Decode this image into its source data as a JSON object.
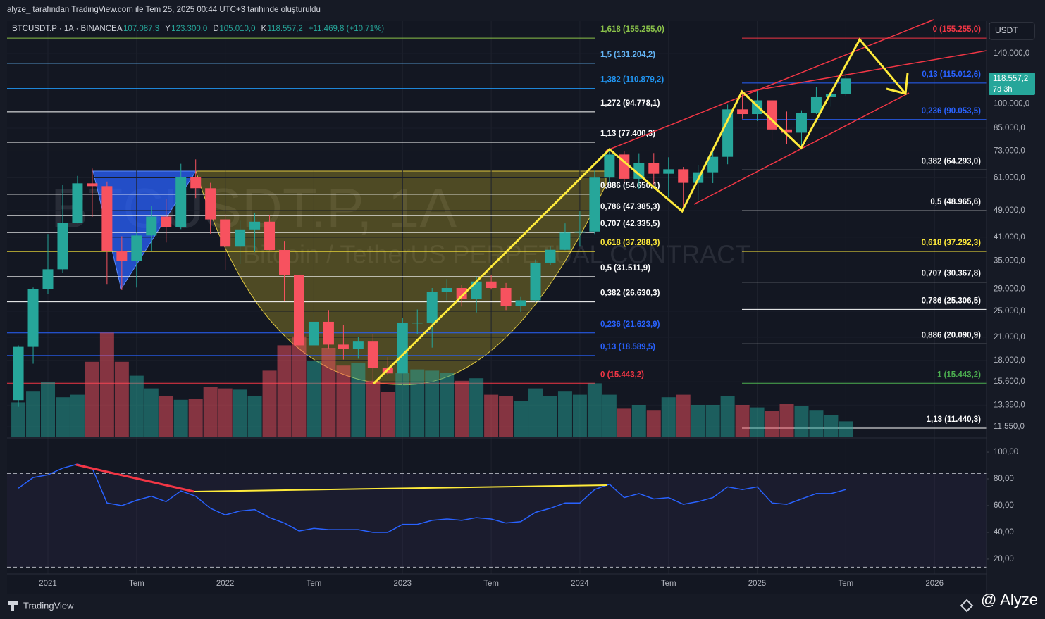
{
  "header": {
    "credit": "alyze_  tarafından TradingView.com ile Tem 25, 2025 00:44 UTC+3 tarihinde oluşturuldu",
    "symbol": "BTCUSDT.P · 1A · BINANCE",
    "ohlc": [
      {
        "key": "A",
        "value": "107.087,3"
      },
      {
        "key": "Y",
        "value": "123.300,0"
      },
      {
        "key": "D",
        "value": "105.010,0"
      },
      {
        "key": "K",
        "value": "118.557,2"
      }
    ],
    "change": "+11.469,8 (+10,71%)",
    "currency": "USDT",
    "price_tag": "118.557,2",
    "countdown": "7d 3h"
  },
  "watermark": {
    "title": "BTCUSDT.P, 1A",
    "subtitle": "Bitcoin / TetherUS PERPETUAL CONTRACT"
  },
  "footer": {
    "brand": "TradingView",
    "author": "@ Alyze"
  },
  "chart_data": {
    "type": "candlestick",
    "log_scale": true,
    "grid": true,
    "up_color": "#26a69a",
    "down_color": "#f7525f",
    "x": [
      "2020-11",
      "2020-12",
      "2021-01",
      "2021-02",
      "2021-03",
      "2021-04",
      "2021-05",
      "2021-06",
      "2021-07",
      "2021-08",
      "2021-09",
      "2021-10",
      "2021-11",
      "2021-12",
      "2022-01",
      "2022-02",
      "2022-03",
      "2022-04",
      "2022-05",
      "2022-06",
      "2022-07",
      "2022-08",
      "2022-09",
      "2022-10",
      "2022-11",
      "2022-12",
      "2023-01",
      "2023-02",
      "2023-03",
      "2023-04",
      "2023-05",
      "2023-06",
      "2023-07",
      "2023-08",
      "2023-09",
      "2023-10",
      "2023-11",
      "2023-12",
      "2024-01",
      "2024-02",
      "2024-03",
      "2024-04",
      "2024-05",
      "2024-06",
      "2024-07",
      "2024-08",
      "2024-09",
      "2024-10",
      "2024-11",
      "2024-12",
      "2025-01",
      "2025-02",
      "2025-03",
      "2025-04",
      "2025-05",
      "2025-06",
      "2025-07"
    ],
    "open": [
      13800,
      19700,
      29000,
      33100,
      45100,
      58800,
      57700,
      37300,
      35000,
      41500,
      47100,
      43800,
      61300,
      56900,
      46200,
      38500,
      43200,
      45500,
      37650,
      31800,
      19900,
      23300,
      20000,
      19400,
      20500,
      17100,
      16500,
      23100,
      23150,
      28500,
      29200,
      27200,
      30500,
      29200,
      25900,
      26900,
      34600,
      37700,
      42300,
      42600,
      61100,
      71300,
      60600,
      67500,
      62700,
      64600,
      59000,
      63300,
      70200,
      96400,
      93400,
      102400,
      84300,
      82500,
      94200,
      104600,
      107087.3
    ],
    "high": [
      19900,
      29300,
      41900,
      58300,
      61800,
      64900,
      59500,
      41300,
      42400,
      50500,
      52900,
      67000,
      69000,
      59000,
      47900,
      45800,
      48200,
      47500,
      40000,
      31900,
      24700,
      25200,
      22800,
      21100,
      21500,
      18400,
      23900,
      25300,
      29200,
      31000,
      29800,
      31400,
      31800,
      30200,
      27500,
      35300,
      38500,
      45000,
      48900,
      64000,
      73800,
      72800,
      71900,
      72000,
      70000,
      65600,
      66500,
      73600,
      99600,
      108400,
      109600,
      102800,
      95000,
      95800,
      111900,
      110500,
      123300
    ],
    "low": [
      13200,
      17600,
      28100,
      32300,
      45000,
      47000,
      30000,
      28800,
      29300,
      37300,
      39600,
      43300,
      53300,
      42000,
      32900,
      34300,
      37200,
      37600,
      26700,
      17600,
      18800,
      19500,
      18100,
      18200,
      15500,
      16300,
      16500,
      21400,
      19600,
      26900,
      25800,
      24800,
      28900,
      25200,
      24900,
      26600,
      34100,
      37600,
      38500,
      41900,
      59000,
      59200,
      56500,
      58400,
      53500,
      49000,
      52500,
      58900,
      66800,
      90500,
      89200,
      78300,
      76600,
      74500,
      93400,
      98200,
      105010
    ],
    "close": [
      19700,
      29000,
      33100,
      45100,
      58800,
      57700,
      37300,
      35000,
      41500,
      47100,
      43800,
      61300,
      56900,
      46200,
      38500,
      43200,
      45500,
      37650,
      31800,
      19900,
      23300,
      20000,
      19400,
      20500,
      17100,
      16500,
      23100,
      23150,
      28500,
      29200,
      27200,
      30500,
      29200,
      25900,
      26900,
      34600,
      37700,
      42300,
      42600,
      61100,
      71300,
      60600,
      67500,
      62700,
      64600,
      59000,
      63300,
      70200,
      96400,
      93400,
      102400,
      84300,
      82500,
      94200,
      104600,
      107087.3,
      118557.2
    ],
    "volume": [
      27,
      36,
      43,
      31,
      33,
      59,
      82,
      59,
      48,
      38,
      32,
      29,
      30,
      39,
      38,
      37,
      32,
      52,
      72,
      79,
      60,
      70,
      56,
      58,
      44,
      35,
      50,
      53,
      52,
      50,
      44,
      46,
      33,
      32,
      28,
      38,
      32,
      36,
      33,
      42,
      33,
      22,
      25,
      21,
      31,
      33,
      25,
      25,
      32,
      25,
      23,
      20,
      26,
      24,
      21,
      17,
      12
    ],
    "volume_ylim": [
      0,
      100
    ],
    "rsi": [
      73,
      81,
      83,
      88,
      91,
      88,
      62,
      60,
      64,
      67,
      63,
      71,
      67,
      58,
      53,
      56,
      57,
      51,
      47,
      41,
      43,
      42,
      42,
      42,
      40,
      40,
      46,
      46,
      49,
      50,
      49,
      51,
      50,
      47,
      48,
      55,
      58,
      62,
      62,
      72,
      76,
      66,
      69,
      65,
      66,
      61,
      63,
      66,
      74,
      72,
      74,
      62,
      61,
      65,
      69,
      69,
      72
    ],
    "rsi_color": "#2962ff",
    "rsi_ylim": [
      8.9,
      107.4
    ],
    "rsi_bands": [
      84,
      14
    ],
    "rsi_yticks": [
      {
        "value": 100,
        "label": "100,00"
      },
      {
        "value": 80,
        "label": "80,00"
      },
      {
        "value": 60,
        "label": "60,00"
      },
      {
        "value": 40,
        "label": "40,00"
      },
      {
        "value": 20,
        "label": "20,00"
      }
    ],
    "ylim": [
      10814,
      173900
    ],
    "yticks": [
      {
        "value": 140000,
        "label": "140.000,0"
      },
      {
        "value": 100000,
        "label": "100.000,0"
      },
      {
        "value": 85000,
        "label": "85.000,0"
      },
      {
        "value": 73000,
        "label": "73.000,0"
      },
      {
        "value": 61000,
        "label": "61.000,0"
      },
      {
        "value": 49000,
        "label": "49.000,0"
      },
      {
        "value": 41000,
        "label": "41.000,0"
      },
      {
        "value": 35000,
        "label": "35.000,0"
      },
      {
        "value": 29000,
        "label": "29.000,0"
      },
      {
        "value": 25000,
        "label": "25.000,0"
      },
      {
        "value": 21000,
        "label": "21.000,0"
      },
      {
        "value": 18000,
        "label": "18.000,0"
      },
      {
        "value": 15600,
        "label": "15.600,0"
      },
      {
        "value": 13350,
        "label": "13.350,0"
      },
      {
        "value": 11550,
        "label": "11.550,0"
      }
    ],
    "xticks": [
      {
        "value": "2021-01",
        "label": "2021"
      },
      {
        "value": "2021-07",
        "label": "Tem"
      },
      {
        "value": "2022-01",
        "label": "2022"
      },
      {
        "value": "2022-07",
        "label": "Tem"
      },
      {
        "value": "2023-01",
        "label": "2023"
      },
      {
        "value": "2023-07",
        "label": "Tem"
      },
      {
        "value": "2024-01",
        "label": "2024"
      },
      {
        "value": "2024-07",
        "label": "Tem"
      },
      {
        "value": "2025-01",
        "label": "2025"
      },
      {
        "value": "2025-07",
        "label": "Tem"
      },
      {
        "value": "2026-01",
        "label": "2026"
      }
    ],
    "fib_left": [
      {
        "value": 155255.0,
        "label": "1,618 (155.255,0)",
        "color": "#8bc34a"
      },
      {
        "value": 131204.2,
        "label": "1,5 (131.204,2)",
        "color": "#64b5f6"
      },
      {
        "value": 110879.2,
        "label": "1,382 (110.879,2)",
        "color": "#2196f3"
      },
      {
        "value": 94778.1,
        "label": "1,272 (94.778,1)",
        "color": "#ffffff"
      },
      {
        "value": 77400.3,
        "label": "1,13 (77.400,3)",
        "color": "#ffffff"
      },
      {
        "value": 54650.1,
        "label": "0,886 (54.650,1)",
        "color": "#ffffff"
      },
      {
        "value": 47385.3,
        "label": "0,786 (47.385,3)",
        "color": "#ffffff"
      },
      {
        "value": 42335.5,
        "label": "0,707 (42.335,5)",
        "color": "#ffffff"
      },
      {
        "value": 37288.3,
        "label": "0,618 (37.288,3)",
        "color": "#ffeb3b"
      },
      {
        "value": 31511.9,
        "label": "0,5 (31.511,9)",
        "color": "#ffffff"
      },
      {
        "value": 26630.3,
        "label": "0,382 (26.630,3)",
        "color": "#ffffff"
      },
      {
        "value": 21623.9,
        "label": "0,236 (21.623,9)",
        "color": "#2962ff"
      },
      {
        "value": 18589.5,
        "label": "0,13 (18.589,5)",
        "color": "#2962ff"
      },
      {
        "value": 15443.2,
        "label": "0 (15.443,2)",
        "color": "#f23645"
      }
    ],
    "fib_right": [
      {
        "value": 155255.0,
        "label": "0 (155.255,0)",
        "color": "#f23645"
      },
      {
        "value": 115012.6,
        "label": "0,13 (115.012,6)",
        "color": "#2962ff"
      },
      {
        "value": 90053.5,
        "label": "0,236 (90.053,5)",
        "color": "#2962ff"
      },
      {
        "value": 64293.0,
        "label": "0,382 (64.293,0)",
        "color": "#ffffff"
      },
      {
        "value": 48965.6,
        "label": "0,5 (48.965,6)",
        "color": "#ffffff"
      },
      {
        "value": 37292.3,
        "label": "0,618 (37.292,3)",
        "color": "#ffeb3b"
      },
      {
        "value": 30367.8,
        "label": "0,707 (30.367,8)",
        "color": "#ffffff"
      },
      {
        "value": 25306.5,
        "label": "0,786 (25.306,5)",
        "color": "#ffffff"
      },
      {
        "value": 20090.9,
        "label": "0,886 (20.090,9)",
        "color": "#ffffff"
      },
      {
        "value": 15443.2,
        "label": "1 (15.443,2)",
        "color": "#4caf50"
      },
      {
        "value": 11440.3,
        "label": "1,13 (11.440,3)",
        "color": "#ffffff"
      }
    ]
  }
}
